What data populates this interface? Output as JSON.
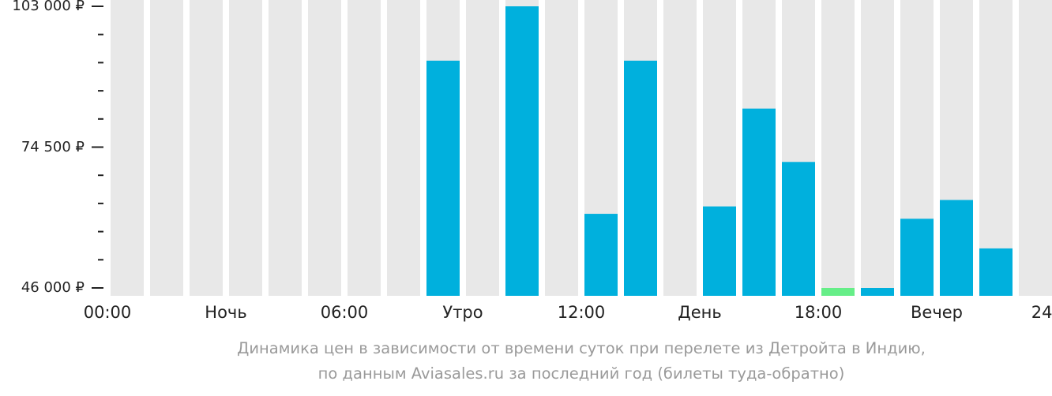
{
  "chart_data": {
    "type": "bar",
    "categories": [
      "00",
      "01",
      "02",
      "03",
      "04",
      "05",
      "06",
      "07",
      "08",
      "09",
      "10",
      "11",
      "12",
      "13",
      "14",
      "15",
      "16",
      "17",
      "18",
      "19",
      "20",
      "21",
      "22",
      "23"
    ],
    "values": [
      null,
      null,
      null,
      null,
      null,
      null,
      null,
      null,
      null,
      null,
      null,
      null,
      null,
      null,
      null,
      null,
      null,
      null,
      null,
      null,
      null,
      null,
      null,
      null
    ],
    "bars": [
      {
        "hour": 8,
        "value": 92000,
        "color": "#00b0dd"
      },
      {
        "hour": 10,
        "value": 103000,
        "color": "#00b0dd"
      },
      {
        "hour": 12,
        "value": 61000,
        "color": "#00b0dd"
      },
      {
        "hour": 13,
        "value": 92000,
        "color": "#00b0dd"
      },
      {
        "hour": 15,
        "value": 62500,
        "color": "#00b0dd"
      },
      {
        "hour": 16,
        "value": 82300,
        "color": "#00b0dd"
      },
      {
        "hour": 17,
        "value": 71500,
        "color": "#00b0dd"
      },
      {
        "hour": 18,
        "value": 46000,
        "color": "#66ee88"
      },
      {
        "hour": 19,
        "value": 46000,
        "color": "#00b0dd"
      },
      {
        "hour": 20,
        "value": 60000,
        "color": "#00b0dd"
      },
      {
        "hour": 21,
        "value": 63800,
        "color": "#00b0dd"
      },
      {
        "hour": 22,
        "value": 54000,
        "color": "#00b0dd"
      }
    ],
    "ylim": [
      46000,
      103000
    ],
    "y_ticks": [
      {
        "value": 103000,
        "label": "103 000 ₽"
      },
      {
        "value": 74500,
        "label": "74 500 ₽"
      },
      {
        "value": 46000,
        "label": "46 000 ₽"
      }
    ],
    "minor_ticks": 4,
    "x_labels": [
      {
        "label": "00:00",
        "pos": 0
      },
      {
        "label": "Ночь",
        "pos": 3
      },
      {
        "label": "06:00",
        "pos": 6
      },
      {
        "label": "Утро",
        "pos": 9
      },
      {
        "label": "12:00",
        "pos": 12
      },
      {
        "label": "День",
        "pos": 15
      },
      {
        "label": "18:00",
        "pos": 18
      },
      {
        "label": "Вечер",
        "pos": 21
      },
      {
        "label": "24:00",
        "pos": 24
      }
    ],
    "background_bar_color": "#e8e8e8",
    "grid": false
  },
  "caption": {
    "line1": "Динамика цен в зависимости от времени суток при перелете из Детройта в Индию,",
    "line2": "по данным Aviasales.ru за последний год (билеты туда-обратно)"
  }
}
